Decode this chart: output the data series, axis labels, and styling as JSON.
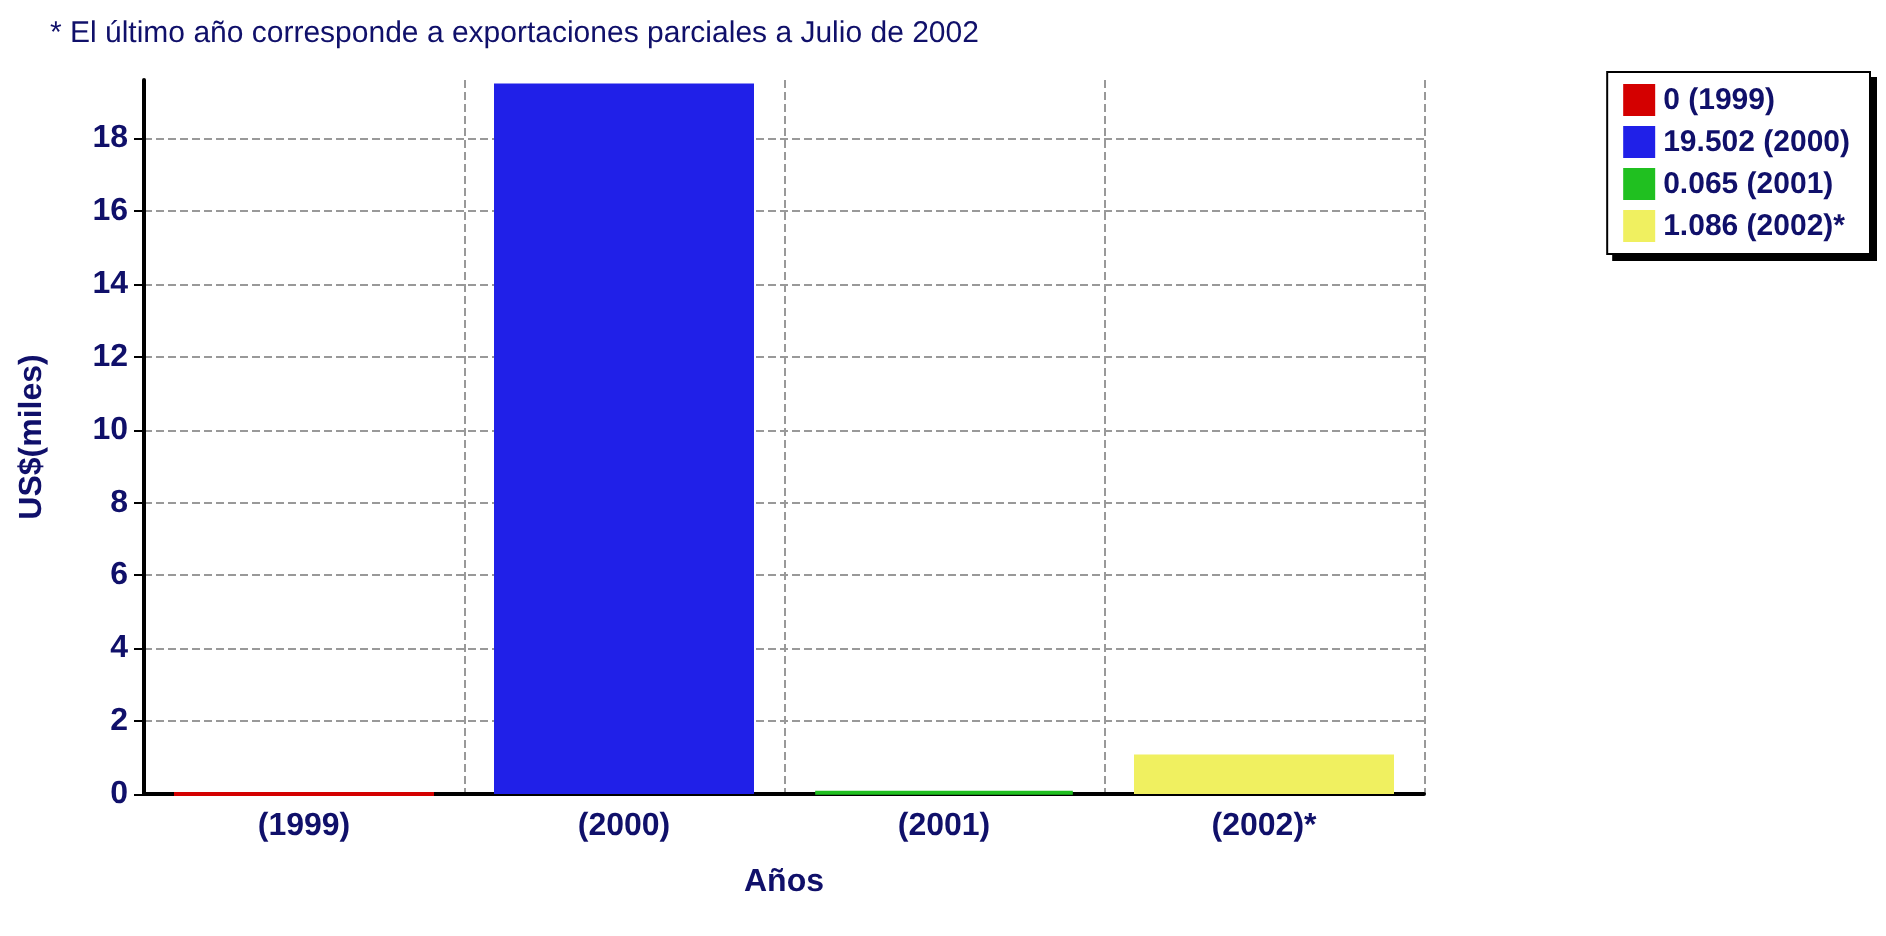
{
  "chart_data": {
    "type": "bar",
    "title": "* El último año corresponde a exportaciones parciales a Julio de 2002",
    "xlabel": "Años",
    "ylabel": "US$(miles)",
    "categories": [
      "(1999)",
      "(2000)",
      "(2001)",
      "(2002)*"
    ],
    "stacked": true,
    "series": [
      {
        "name": "0 (1999)",
        "color": "#d40000",
        "values": [
          0,
          null,
          null,
          null
        ]
      },
      {
        "name": "19.502 (2000)",
        "color": "#2020e8",
        "values": [
          null,
          19.502,
          null,
          null
        ]
      },
      {
        "name": "0.065 (2001)",
        "color": "#20c020",
        "values": [
          null,
          null,
          0.065,
          null
        ]
      },
      {
        "name": "1.086 (2002)*",
        "color": "#f0f060",
        "values": [
          null,
          null,
          null,
          1.086
        ]
      }
    ],
    "ylim": [
      0,
      19.6
    ],
    "yticks": [
      0,
      2,
      4,
      6,
      8,
      10,
      12,
      14,
      16,
      18
    ],
    "grid": true,
    "legend": "top right"
  }
}
